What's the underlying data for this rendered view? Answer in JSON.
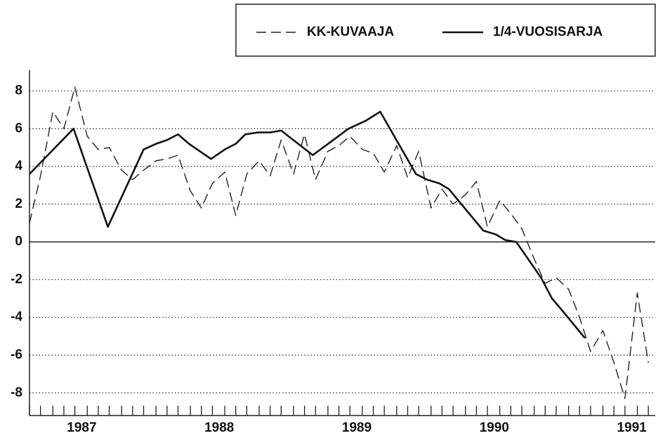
{
  "chart_data": {
    "type": "line",
    "legend": "top-right",
    "grid": true,
    "series": [
      {
        "name": "KK-KUVAAJA",
        "color": "#222",
        "dash": true,
        "x": [
          1986.62,
          1986.7,
          1986.79,
          1986.87,
          1986.95,
          1987.04,
          1987.12,
          1987.2,
          1987.29,
          1987.37,
          1987.45,
          1987.54,
          1987.62,
          1987.7,
          1987.79,
          1987.87,
          1987.95,
          1988.04,
          1988.12,
          1988.2,
          1988.29,
          1988.37,
          1988.45,
          1988.54,
          1988.62,
          1988.7,
          1988.79,
          1988.87,
          1988.95,
          1989.04,
          1989.12,
          1989.2,
          1989.29,
          1989.37,
          1989.45,
          1989.54,
          1989.62,
          1989.7,
          1989.79,
          1989.87,
          1989.95,
          1990.04,
          1990.12,
          1990.2,
          1990.29,
          1990.37,
          1990.45,
          1990.54,
          1990.62,
          1990.7,
          1990.79,
          1990.87,
          1990.95,
          1991.04,
          1991.12
        ],
        "values": [
          1.0,
          3.5,
          6.9,
          6.0,
          8.2,
          5.6,
          4.9,
          5.0,
          3.8,
          3.3,
          3.8,
          4.3,
          4.4,
          4.6,
          2.7,
          1.8,
          3.1,
          3.7,
          1.4,
          3.6,
          4.3,
          3.5,
          5.4,
          3.6,
          5.7,
          3.3,
          4.8,
          5.1,
          5.6,
          4.9,
          4.7,
          3.7,
          5.1,
          3.4,
          4.8,
          1.8,
          2.8,
          2.0,
          2.5,
          3.2,
          0.8,
          2.2,
          1.5,
          0.7,
          -0.9,
          -2.2,
          -1.9,
          -2.5,
          -4.0,
          -5.8,
          -4.7,
          -6.4,
          -8.3,
          -2.7,
          -6.4
        ]
      },
      {
        "name": "1/4-VUOSISARJA",
        "color": "#111",
        "dash": false,
        "x": [
          1986.62,
          1986.94,
          1987.19,
          1987.45,
          1987.54,
          1987.62,
          1987.7,
          1987.78,
          1987.94,
          1988.04,
          1988.12,
          1988.19,
          1988.28,
          1988.37,
          1988.45,
          1988.68,
          1988.81,
          1988.94,
          1989.06,
          1989.17,
          1989.43,
          1989.51,
          1989.6,
          1989.67,
          1989.92,
          1990.01,
          1990.08,
          1990.16,
          1990.34,
          1990.42,
          1990.49,
          1990.66
        ],
        "values": [
          3.6,
          6.0,
          0.8,
          4.9,
          5.2,
          5.4,
          5.7,
          5.2,
          4.4,
          4.9,
          5.2,
          5.7,
          5.8,
          5.8,
          5.9,
          4.6,
          5.3,
          6.0,
          6.4,
          6.9,
          3.6,
          3.3,
          3.1,
          2.8,
          0.6,
          0.4,
          0.1,
          0.0,
          -1.9,
          -3.0,
          -3.6,
          -5.1
        ]
      }
    ],
    "xlim": [
      1986.62,
      1991.17
    ],
    "xticks": [
      1987,
      1988,
      1989,
      1990,
      1991
    ],
    "ylim": [
      -9.2,
      9.1
    ],
    "yticks": [
      -8,
      -6,
      -4,
      -2,
      0,
      2,
      4,
      6,
      8
    ]
  }
}
